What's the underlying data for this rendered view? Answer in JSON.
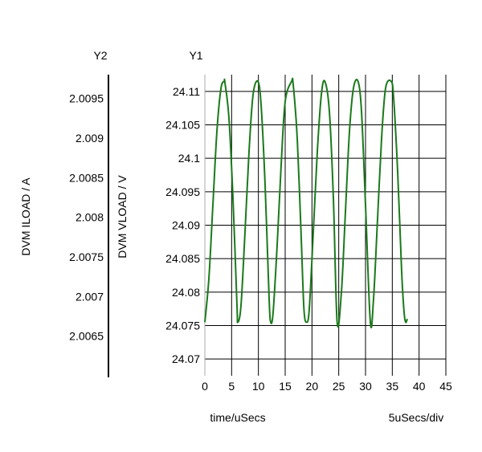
{
  "chart_data": {
    "type": "line",
    "x_label": "time/uSecs",
    "x_scale_label": "5uSecs/div",
    "x_ticks": [
      "0",
      "5",
      "10",
      "15",
      "20",
      "25",
      "30",
      "35",
      "40",
      "45"
    ],
    "xlim": [
      0,
      45
    ],
    "y1": {
      "header": "Y1",
      "label": "DVM VLOAD / V",
      "ticks": [
        "24.11",
        "24.105",
        "24.1",
        "24.095",
        "24.09",
        "24.085",
        "24.08",
        "24.075",
        "24.07"
      ],
      "ylim": [
        24.0675,
        24.1125
      ]
    },
    "y2": {
      "header": "Y2",
      "label": "DVM ILOAD / A",
      "ticks": [
        "2.0095",
        "2.009",
        "2.0085",
        "2.008",
        "2.0075",
        "2.007",
        "2.0065"
      ],
      "ylim": [
        2.006,
        2.0098
      ]
    },
    "grid": true,
    "series": [
      {
        "axis": "y1",
        "color": "#1a7a1a",
        "x": [
          0,
          0.75,
          1.5,
          2.25,
          3.0,
          3.6,
          3.75,
          4.5,
          5.25,
          6.0,
          6.15,
          6.75,
          7.5,
          8.25,
          9.0,
          9.9,
          10.5,
          11.25,
          12.0,
          12.3,
          12.75,
          13.5,
          14.25,
          15.0,
          16.2,
          16.5,
          17.25,
          18.0,
          18.5,
          19.0,
          19.5,
          20.25,
          21.0,
          21.75,
          22.4,
          23.25,
          24.0,
          24.7,
          25.5,
          26.25,
          27.0,
          27.75,
          28.6,
          29.25,
          30.0,
          30.9,
          31.5,
          32.25,
          33.0,
          33.75,
          34.8,
          35.25,
          36.0,
          36.75,
          37.2,
          37.5,
          37.8
        ],
        "y": [
          24.0755,
          24.082,
          24.093,
          24.104,
          24.1104,
          24.1115,
          24.1113,
          24.106,
          24.094,
          24.078,
          24.0755,
          24.078,
          24.089,
          24.101,
          24.1095,
          24.1115,
          24.108,
          24.096,
          24.079,
          24.0755,
          24.077,
          24.087,
          24.099,
          24.1085,
          24.1115,
          24.111,
          24.103,
          24.088,
          24.0775,
          24.0755,
          24.0775,
          24.089,
          24.101,
          24.1095,
          24.1115,
          24.107,
          24.094,
          24.0755,
          24.08,
          24.092,
          24.104,
          24.1105,
          24.1115,
          24.107,
          24.093,
          24.0755,
          24.079,
          24.091,
          24.103,
          24.1105,
          24.1115,
          24.109,
          24.098,
          24.083,
          24.077,
          24.0755,
          24.076
        ]
      }
    ]
  }
}
